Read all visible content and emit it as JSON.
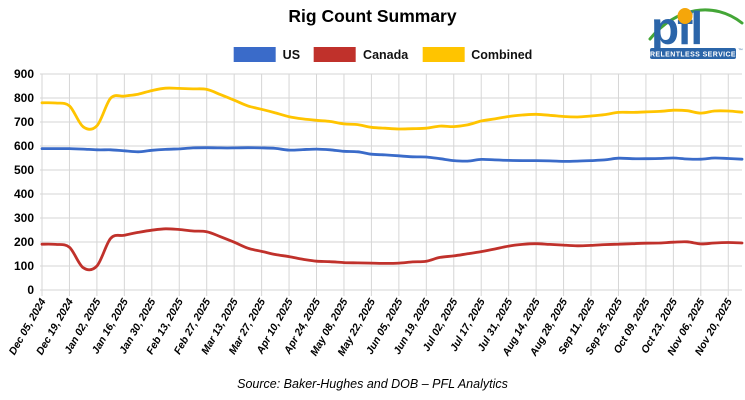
{
  "title": "Rig Count Summary",
  "source_note": "Source: Baker-Hughes and DOB – PFL Analytics",
  "logo": {
    "wordmark": "pfl",
    "tagline": "RELENTLESS SERVICE",
    "trademark": "™"
  },
  "legend": [
    {
      "label": "US",
      "color": "#3A6BC9"
    },
    {
      "label": "Canada",
      "color": "#C0312B"
    },
    {
      "label": "Combined",
      "color": "#FFC400"
    }
  ],
  "chart_data": {
    "type": "line",
    "title": "Rig Count Summary",
    "xlabel": "",
    "ylabel": "",
    "ylim": [
      0,
      900
    ],
    "ytick_step": 100,
    "grid": true,
    "legend_position": "top",
    "points_per_label": 2,
    "x_labels": [
      "Dec 05, 2024",
      "Dec 19, 2024",
      "Jan 02, 2025",
      "Jan 16, 2025",
      "Jan 30, 2025",
      "Feb 13, 2025",
      "Feb 27, 2025",
      "Mar 13, 2025",
      "Mar 27, 2025",
      "Apr 10, 2025",
      "Apr 24, 2025",
      "May 08, 2025",
      "May 22, 2025",
      "Jun 05, 2025",
      "Jun 19, 2025",
      "Jul 02, 2025",
      "Jul 17, 2025",
      "Jul 31, 2025",
      "Aug 14, 2025",
      "Aug 28, 2025",
      "Sep 11, 2025",
      "Sep 25, 2025",
      "Oct 09, 2025",
      "Oct 23, 2025",
      "Nov 06, 2025",
      "Nov 20, 2025"
    ],
    "series": [
      {
        "name": "US",
        "color": "#3A6BC9",
        "values": [
          589,
          589,
          589,
          587,
          584,
          584,
          580,
          576,
          582,
          586,
          588,
          592,
          593,
          592,
          592,
          593,
          592,
          590,
          583,
          585,
          587,
          584,
          578,
          576,
          566,
          563,
          559,
          555,
          554,
          547,
          539,
          537,
          544,
          542,
          540,
          539,
          539,
          538,
          536,
          537,
          539,
          542,
          549,
          547,
          547,
          548,
          550,
          546,
          545,
          550,
          548,
          545
        ]
      },
      {
        "name": "Canada",
        "color": "#C0312B",
        "values": [
          191,
          190,
          178,
          93,
          100,
          215,
          228,
          240,
          249,
          255,
          252,
          246,
          243,
          222,
          199,
          174,
          161,
          148,
          139,
          128,
          120,
          118,
          114,
          113,
          112,
          111,
          112,
          117,
          120,
          136,
          142,
          151,
          160,
          171,
          183,
          190,
          193,
          190,
          187,
          184,
          186,
          189,
          191,
          193,
          195,
          196,
          199,
          201,
          192,
          196,
          198,
          196
        ]
      },
      {
        "name": "Combined",
        "color": "#FFC400",
        "values": [
          780,
          779,
          767,
          680,
          684,
          799,
          808,
          816,
          831,
          841,
          840,
          838,
          836,
          814,
          791,
          767,
          753,
          738,
          722,
          713,
          707,
          702,
          692,
          689,
          678,
          674,
          671,
          672,
          674,
          683,
          681,
          688,
          704,
          713,
          723,
          729,
          732,
          728,
          723,
          721,
          725,
          731,
          740,
          740,
          742,
          744,
          749,
          747,
          737,
          746,
          746,
          741
        ]
      }
    ]
  }
}
